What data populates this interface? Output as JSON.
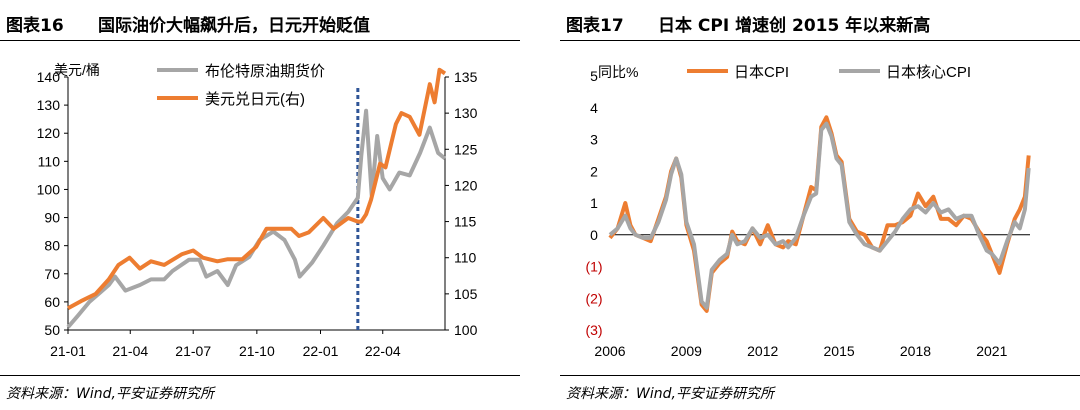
{
  "figure16": {
    "number": "图表16",
    "title": "国际油价大幅飙升后，日元开始贬值",
    "source": "资料来源：Wind,平安证券研究所"
  },
  "figure17": {
    "number": "图表17",
    "title": "日本 CPI 增速创 2015 年以来新高",
    "source": "资料来源：Wind,平安证券研究所"
  },
  "chart_data": [
    {
      "type": "line",
      "ylabel_left": "美元/桶",
      "ylim_left": [
        50,
        140
      ],
      "ylim_right": [
        100,
        135
      ],
      "yticks_left": [
        50,
        60,
        70,
        80,
        90,
        100,
        110,
        120,
        130,
        140
      ],
      "yticks_right": [
        100,
        105,
        110,
        115,
        120,
        125,
        130,
        135
      ],
      "xlim": [
        "2021-01-01",
        "2022-06-30"
      ],
      "xtick_labels": [
        "21-01",
        "21-04",
        "21-07",
        "21-10",
        "22-01",
        "22-04"
      ],
      "xticks": [
        "2021-01-01",
        "2021-04-01",
        "2021-07-01",
        "2021-10-01",
        "2022-01-01",
        "2022-04-01"
      ],
      "marker_line": {
        "x": "2022-02-24",
        "style": "dashed",
        "color": "#2F5597"
      },
      "legend_position": "top-left",
      "series": [
        {
          "name": "布伦特原油期货价",
          "axis": "left",
          "color": "#A6A6A6",
          "x": [
            "2021-01-01",
            "2021-01-15",
            "2021-02-01",
            "2021-02-15",
            "2021-03-01",
            "2021-03-10",
            "2021-03-25",
            "2021-04-15",
            "2021-05-01",
            "2021-05-20",
            "2021-06-01",
            "2021-06-25",
            "2021-07-10",
            "2021-07-20",
            "2021-08-05",
            "2021-08-20",
            "2021-09-01",
            "2021-09-20",
            "2021-10-05",
            "2021-10-25",
            "2021-11-10",
            "2021-11-25",
            "2021-12-02",
            "2021-12-20",
            "2022-01-05",
            "2022-01-25",
            "2022-02-10",
            "2022-02-24",
            "2022-03-01",
            "2022-03-08",
            "2022-03-16",
            "2022-03-24",
            "2022-04-01",
            "2022-04-11",
            "2022-04-25",
            "2022-05-10",
            "2022-05-25",
            "2022-06-08",
            "2022-06-20",
            "2022-06-30"
          ],
          "y": [
            51,
            55,
            60,
            63,
            66,
            69,
            64,
            66,
            68,
            68,
            71,
            75,
            75,
            69,
            71,
            66,
            73,
            76,
            82,
            85,
            82,
            75,
            69,
            74,
            80,
            88,
            92,
            97,
            112,
            128,
            98,
            119,
            104,
            100,
            106,
            105,
            113,
            122,
            113,
            111
          ]
        },
        {
          "name": "美元兑日元(右)",
          "axis": "right",
          "color": "#ED7D31",
          "x": [
            "2021-01-01",
            "2021-01-20",
            "2021-02-10",
            "2021-03-01",
            "2021-03-15",
            "2021-03-31",
            "2021-04-15",
            "2021-05-01",
            "2021-05-20",
            "2021-06-15",
            "2021-07-01",
            "2021-07-15",
            "2021-08-05",
            "2021-08-20",
            "2021-09-10",
            "2021-09-30",
            "2021-10-15",
            "2021-11-01",
            "2021-11-20",
            "2021-12-01",
            "2021-12-15",
            "2022-01-05",
            "2022-01-20",
            "2022-02-10",
            "2022-02-24",
            "2022-03-01",
            "2022-03-08",
            "2022-03-15",
            "2022-03-28",
            "2022-04-05",
            "2022-04-20",
            "2022-04-28",
            "2022-05-10",
            "2022-05-24",
            "2022-06-08",
            "2022-06-15",
            "2022-06-22",
            "2022-06-30"
          ],
          "y": [
            103,
            104,
            105,
            107,
            109,
            110,
            108.5,
            109.5,
            109,
            110.5,
            111,
            110,
            109.5,
            109.8,
            109.8,
            111.5,
            114,
            114,
            114,
            113,
            113.5,
            115.5,
            114,
            115.5,
            115,
            115,
            116,
            118,
            123,
            122.5,
            128.5,
            130,
            129.5,
            127,
            134,
            131.5,
            136,
            135.5
          ]
        }
      ]
    },
    {
      "type": "line",
      "ylabel": "同比%",
      "ylim": [
        -3,
        5
      ],
      "ytick_labels": [
        "(3)",
        "(2)",
        "(1)",
        "0",
        "1",
        "2",
        "3",
        "4",
        "5"
      ],
      "yticks": [
        -3,
        -2,
        -1,
        0,
        1,
        2,
        3,
        4,
        5
      ],
      "xlim": [
        2006.0,
        2022.5
      ],
      "xtick_labels": [
        "2006",
        "2009",
        "2012",
        "2015",
        "2018",
        "2021"
      ],
      "xticks": [
        2006,
        2009,
        2012,
        2015,
        2018,
        2021
      ],
      "legend_position": "top",
      "series": [
        {
          "name": "日本CPI",
          "color": "#ED7D31",
          "x": [
            2006.0,
            2006.3,
            2006.6,
            2006.8,
            2007.0,
            2007.3,
            2007.6,
            2007.9,
            2008.2,
            2008.4,
            2008.6,
            2008.8,
            2009.0,
            2009.3,
            2009.6,
            2009.8,
            2010.0,
            2010.3,
            2010.6,
            2010.8,
            2011.0,
            2011.3,
            2011.6,
            2011.9,
            2012.2,
            2012.5,
            2012.8,
            2013.0,
            2013.3,
            2013.6,
            2013.9,
            2014.1,
            2014.3,
            2014.5,
            2014.7,
            2014.9,
            2015.1,
            2015.4,
            2015.7,
            2016.0,
            2016.3,
            2016.6,
            2016.9,
            2017.2,
            2017.5,
            2017.8,
            2018.1,
            2018.4,
            2018.7,
            2019.0,
            2019.3,
            2019.6,
            2019.9,
            2020.2,
            2020.5,
            2020.8,
            2021.0,
            2021.3,
            2021.6,
            2021.9,
            2022.1,
            2022.3,
            2022.45
          ],
          "y": [
            -0.1,
            0.2,
            1.0,
            0.3,
            0.0,
            -0.1,
            -0.2,
            0.5,
            1.2,
            2.0,
            2.4,
            1.8,
            0.3,
            -0.5,
            -2.2,
            -2.4,
            -1.2,
            -0.9,
            -0.7,
            0.1,
            -0.2,
            -0.3,
            0.2,
            -0.3,
            0.3,
            -0.3,
            -0.4,
            -0.2,
            -0.3,
            0.6,
            1.5,
            1.4,
            3.4,
            3.7,
            3.2,
            2.5,
            2.3,
            0.5,
            0.1,
            0.0,
            -0.4,
            -0.5,
            0.3,
            0.3,
            0.4,
            0.6,
            1.3,
            0.9,
            1.2,
            0.5,
            0.5,
            0.3,
            0.6,
            0.5,
            0.1,
            -0.2,
            -0.6,
            -1.2,
            -0.3,
            0.5,
            0.8,
            1.2,
            2.5
          ]
        },
        {
          "name": "日本核心CPI",
          "color": "#A6A6A6",
          "x": [
            2006.0,
            2006.3,
            2006.6,
            2006.8,
            2007.0,
            2007.3,
            2007.6,
            2007.9,
            2008.2,
            2008.4,
            2008.6,
            2008.8,
            2009.0,
            2009.3,
            2009.6,
            2009.8,
            2010.0,
            2010.3,
            2010.6,
            2010.8,
            2011.0,
            2011.3,
            2011.6,
            2011.9,
            2012.2,
            2012.5,
            2012.8,
            2013.0,
            2013.3,
            2013.6,
            2013.9,
            2014.1,
            2014.3,
            2014.5,
            2014.7,
            2014.9,
            2015.1,
            2015.4,
            2015.7,
            2016.0,
            2016.3,
            2016.6,
            2016.9,
            2017.2,
            2017.5,
            2017.8,
            2018.1,
            2018.4,
            2018.7,
            2019.0,
            2019.3,
            2019.6,
            2019.9,
            2020.2,
            2020.5,
            2020.8,
            2021.0,
            2021.3,
            2021.6,
            2021.9,
            2022.1,
            2022.3,
            2022.45
          ],
          "y": [
            0.0,
            0.2,
            0.6,
            0.2,
            0.0,
            -0.1,
            -0.1,
            0.4,
            1.1,
            1.9,
            2.4,
            1.9,
            0.4,
            -0.3,
            -2.1,
            -2.3,
            -1.1,
            -0.8,
            -0.6,
            0.0,
            -0.3,
            -0.2,
            0.2,
            -0.1,
            0.0,
            -0.3,
            -0.2,
            -0.4,
            -0.1,
            0.6,
            1.2,
            1.3,
            3.3,
            3.5,
            3.1,
            2.4,
            2.2,
            0.4,
            0.0,
            -0.3,
            -0.4,
            -0.5,
            -0.2,
            0.1,
            0.5,
            0.8,
            0.9,
            0.7,
            1.0,
            0.7,
            0.8,
            0.5,
            0.6,
            0.6,
            0.0,
            -0.5,
            -0.6,
            -0.9,
            -0.2,
            0.4,
            0.2,
            0.8,
            2.1
          ]
        }
      ]
    }
  ]
}
